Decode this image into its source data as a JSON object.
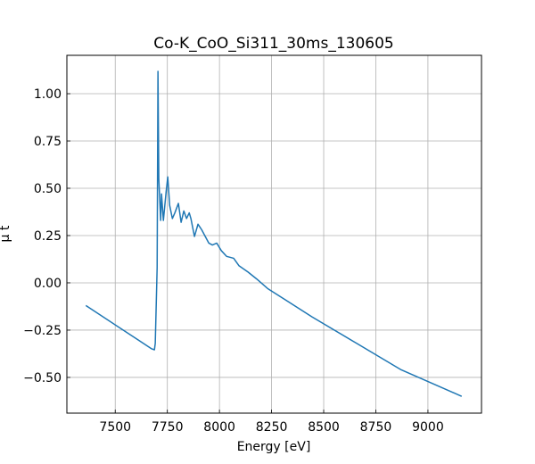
{
  "chart_data": {
    "type": "line",
    "title": "Co-K_CoO_Si311_30ms_130605",
    "xlabel": "Energy [eV]",
    "ylabel": "μ t",
    "x": [
      7359,
      7675,
      7688,
      7692,
      7701,
      7705,
      7709,
      7718,
      7722,
      7731,
      7744,
      7752,
      7761,
      7774,
      7786,
      7803,
      7816,
      7829,
      7842,
      7855,
      7863,
      7880,
      7897,
      7915,
      7949,
      7966,
      7987,
      8009,
      8034,
      8068,
      8094,
      8137,
      8179,
      8231,
      8316,
      8444,
      8658,
      8872,
      9162
    ],
    "values": [
      -0.12,
      -0.349,
      -0.354,
      -0.32,
      0.08,
      1.118,
      0.55,
      0.33,
      0.47,
      0.33,
      0.48,
      0.56,
      0.41,
      0.34,
      0.37,
      0.42,
      0.32,
      0.38,
      0.34,
      0.37,
      0.34,
      0.245,
      0.31,
      0.28,
      0.21,
      0.2,
      0.21,
      0.17,
      0.14,
      0.13,
      0.09,
      0.057,
      0.02,
      -0.03,
      -0.09,
      -0.18,
      -0.32,
      -0.46,
      -0.6
    ],
    "color": "#1f77b4",
    "xlim": [
      7268,
      9257
    ],
    "ylim": [
      -0.689,
      1.203
    ],
    "xticks": [
      7500,
      7750,
      8000,
      8250,
      8500,
      8750,
      9000
    ],
    "yticks": [
      {
        "value": 1.0,
        "label": "1.00"
      },
      {
        "value": 0.75,
        "label": "0.75"
      },
      {
        "value": 0.5,
        "label": "0.50"
      },
      {
        "value": 0.25,
        "label": "0.25"
      },
      {
        "value": 0.0,
        "label": "0.00"
      },
      {
        "value": -0.25,
        "label": "−0.25"
      },
      {
        "value": -0.5,
        "label": "−0.50"
      }
    ],
    "grid": true
  }
}
